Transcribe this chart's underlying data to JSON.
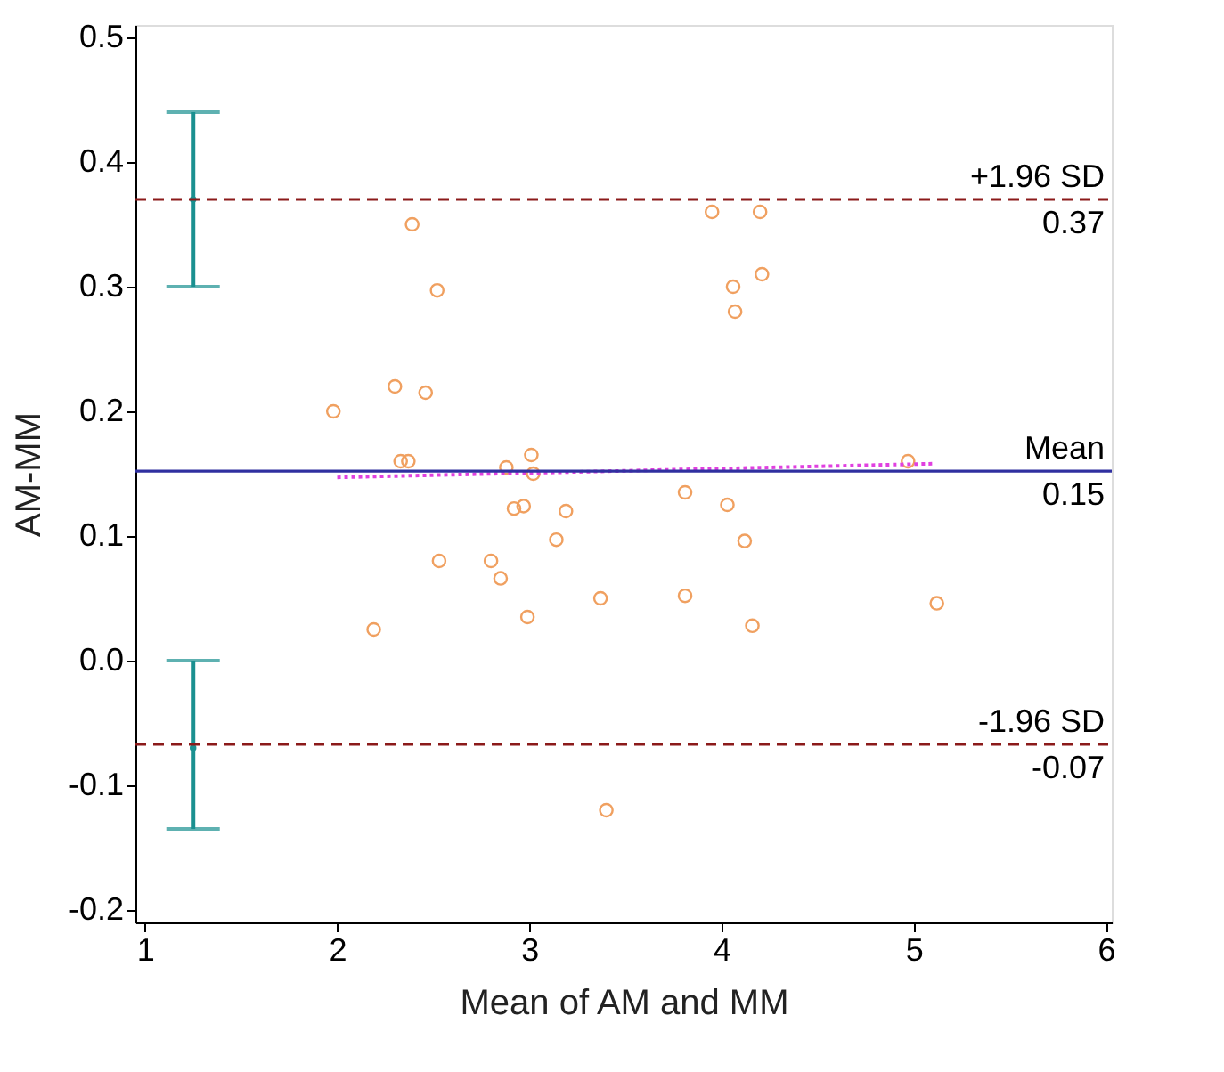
{
  "chart_data": {
    "type": "scatter",
    "xlabel": "Mean of AM and MM",
    "ylabel": "AM-MM",
    "xlim": [
      0.95,
      6.03
    ],
    "xticks": [
      1,
      2,
      3,
      4,
      5,
      6
    ],
    "ylim": [
      -0.21,
      0.51
    ],
    "yticks": [
      {
        "value": -0.2,
        "label": "-0.2"
      },
      {
        "value": -0.1,
        "label": "-0.1"
      },
      {
        "value": 0,
        "label": "0.0"
      },
      0.1,
      0.2,
      0.3,
      0.4,
      0.5
    ],
    "marker": "circle",
    "series": [
      {
        "color": "#f0a060",
        "x": [
          1.98,
          2.19,
          2.3,
          2.33,
          2.37,
          2.39,
          2.46,
          2.52,
          2.53,
          2.8,
          2.85,
          2.88,
          2.92,
          2.97,
          2.99,
          3.01,
          3.02,
          3.14,
          3.19,
          3.37,
          3.4,
          3.81,
          3.81,
          3.95,
          4.03,
          4.06,
          4.07,
          4.12,
          4.16,
          4.2,
          4.21,
          4.97,
          5.12
        ],
        "values": [
          0.2,
          0.025,
          0.22,
          0.16,
          0.16,
          0.35,
          0.215,
          0.297,
          0.08,
          0.08,
          0.066,
          0.155,
          0.122,
          0.124,
          0.035,
          0.165,
          0.15,
          0.097,
          0.12,
          0.05,
          -0.12,
          0.135,
          0.052,
          0.36,
          0.125,
          0.3,
          0.28,
          0.096,
          0.028,
          0.36,
          0.31,
          0.16,
          0.046
        ]
      },
      {
        "type": "line",
        "color": "#e040e0",
        "line_style": "dotted",
        "marker": "none",
        "x": [
          2.0,
          5.1
        ],
        "values": [
          0.147,
          0.158
        ]
      },
      {
        "color": "#1a9090",
        "x": [
          1.25,
          1.25
        ],
        "values": [
          0.37,
          -0.07
        ],
        "errors": [
          [
            0.3,
            0.44
          ],
          [
            -0.135,
            0.0
          ]
        ]
      }
    ],
    "ref_lines": [
      {
        "axis": "y",
        "value": 0.37,
        "label": "+1.96 SD",
        "color": "#8b1a1a",
        "line_style": "dashed"
      },
      {
        "axis": "y",
        "value": 0.152,
        "label": "Mean",
        "color": "#3030a0",
        "line_style": "solid"
      },
      {
        "axis": "y",
        "value": -0.067,
        "label": "-1.96 SD",
        "color": "#8b1a1a",
        "line_style": "dashed"
      }
    ],
    "annotations": [
      {
        "text": "0.37",
        "y": 0.37
      },
      {
        "text": "0.15",
        "y": 0.152
      },
      {
        "text": "-0.07",
        "y": -0.067
      }
    ]
  }
}
